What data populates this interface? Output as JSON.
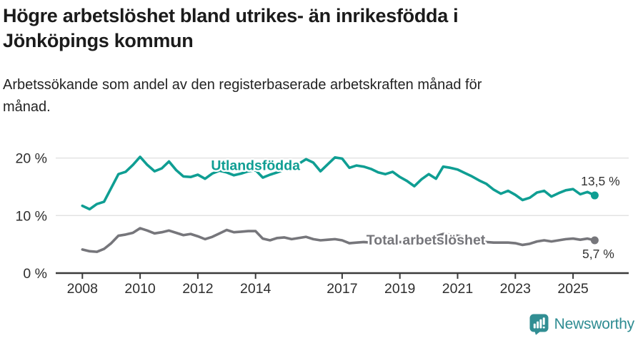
{
  "header": {
    "title_line1": "Högre arbetslöshet bland utrikes- än inrikesfödda i",
    "title_line2": "Jönköpings kommun",
    "subtitle_line1": "Arbetssökande som andel av den registerbaserade arbetskraften månad för",
    "subtitle_line2": "månad."
  },
  "chart_data": {
    "type": "line",
    "title": "Högre arbetslöshet bland utrikes- än inrikesfödda i Jönköpings kommun",
    "subtitle": "Arbetssökande som andel av den registerbaserade arbetskraften månad för månad.",
    "unit": "%",
    "grid": "horizontal-only",
    "legend_position": "inline-labels",
    "ylim": [
      0,
      21.5
    ],
    "xlim": [
      2007.1,
      2026.9
    ],
    "y_ticks": [
      {
        "value": 0,
        "label": "0 %"
      },
      {
        "value": 10,
        "label": "10 %"
      },
      {
        "value": 20,
        "label": "20 %"
      }
    ],
    "x_ticks": [
      {
        "value": 2008,
        "label": "2008"
      },
      {
        "value": 2010,
        "label": "2010"
      },
      {
        "value": 2012,
        "label": "2012"
      },
      {
        "value": 2014,
        "label": "2014"
      },
      {
        "value": 2017,
        "label": "2017"
      },
      {
        "value": 2019,
        "label": "2019"
      },
      {
        "value": 2021,
        "label": "2021"
      },
      {
        "value": 2023,
        "label": "2023"
      },
      {
        "value": 2025,
        "label": "2025"
      }
    ],
    "x": [
      2008.0,
      2008.25,
      2008.5,
      2008.75,
      2009.0,
      2009.25,
      2009.5,
      2009.75,
      2010.0,
      2010.25,
      2010.5,
      2010.75,
      2011.0,
      2011.25,
      2011.5,
      2011.75,
      2012.0,
      2012.25,
      2012.5,
      2012.75,
      2013.0,
      2013.25,
      2013.5,
      2013.75,
      2014.0,
      2014.25,
      2014.5,
      2014.75,
      2015.0,
      2015.25,
      2015.5,
      2015.75,
      2016.0,
      2016.25,
      2016.5,
      2016.75,
      2017.0,
      2017.25,
      2017.5,
      2017.75,
      2018.0,
      2018.25,
      2018.5,
      2018.75,
      2019.0,
      2019.25,
      2019.5,
      2019.75,
      2020.0,
      2020.25,
      2020.5,
      2020.75,
      2021.0,
      2021.25,
      2021.5,
      2021.75,
      2022.0,
      2022.25,
      2022.5,
      2022.75,
      2023.0,
      2023.25,
      2023.5,
      2023.75,
      2024.0,
      2024.25,
      2024.5,
      2024.75,
      2025.0,
      2025.25,
      2025.5,
      2025.75
    ],
    "series": [
      {
        "name": "Utlandsfödda",
        "color": "#0f9e93",
        "end_value": 13.5,
        "end_value_label": "13,5 %",
        "label_x": 2014.0,
        "label_y": 18.8,
        "values": [
          11.7,
          11.1,
          12.0,
          12.4,
          14.8,
          17.2,
          17.6,
          18.8,
          20.2,
          18.8,
          17.7,
          18.2,
          19.4,
          17.9,
          16.8,
          16.7,
          17.1,
          16.4,
          17.3,
          17.8,
          17.5,
          17.0,
          17.3,
          17.7,
          17.9,
          16.6,
          17.1,
          17.5,
          18.0,
          18.4,
          19.0,
          19.8,
          19.2,
          17.7,
          18.9,
          20.1,
          19.9,
          18.3,
          18.7,
          18.5,
          18.1,
          17.5,
          17.2,
          17.6,
          16.7,
          16.0,
          15.1,
          16.3,
          17.2,
          16.4,
          18.5,
          18.3,
          18.0,
          17.4,
          16.8,
          16.1,
          15.5,
          14.5,
          13.8,
          14.3,
          13.6,
          12.7,
          13.1,
          14.0,
          14.3,
          13.3,
          13.9,
          14.4,
          14.6,
          13.7,
          14.1,
          13.5
        ]
      },
      {
        "name": "Total arbetslöshet",
        "color": "#76767b",
        "end_value": 5.7,
        "end_value_label": "5,7 %",
        "label_x": 2019.9,
        "label_y": 5.8,
        "values": [
          4.1,
          3.8,
          3.7,
          4.2,
          5.2,
          6.5,
          6.7,
          7.0,
          7.8,
          7.4,
          6.9,
          7.1,
          7.4,
          7.0,
          6.6,
          6.8,
          6.4,
          5.9,
          6.3,
          6.9,
          7.5,
          7.1,
          7.2,
          7.3,
          7.3,
          6.0,
          5.7,
          6.1,
          6.2,
          5.9,
          6.1,
          6.3,
          5.9,
          5.7,
          5.8,
          5.9,
          5.7,
          5.2,
          5.3,
          5.4,
          5.3,
          5.2,
          5.3,
          5.4,
          5.4,
          5.3,
          5.5,
          5.6,
          5.8,
          6.4,
          6.8,
          6.7,
          6.5,
          6.2,
          5.9,
          5.6,
          5.4,
          5.3,
          5.3,
          5.3,
          5.2,
          4.9,
          5.1,
          5.5,
          5.7,
          5.5,
          5.7,
          5.9,
          6.0,
          5.8,
          6.0,
          5.7
        ]
      }
    ],
    "colors": {
      "grid": "#e3e3e3",
      "axis": "#3b3b3b",
      "tick_label": "#2e2e2e",
      "value_label": "#333333"
    }
  },
  "footer": {
    "brand": "Newsworthy",
    "brand_color": "#2e8c92",
    "logo_icon": "newsworthy-bar-chart-speech-bubble"
  }
}
